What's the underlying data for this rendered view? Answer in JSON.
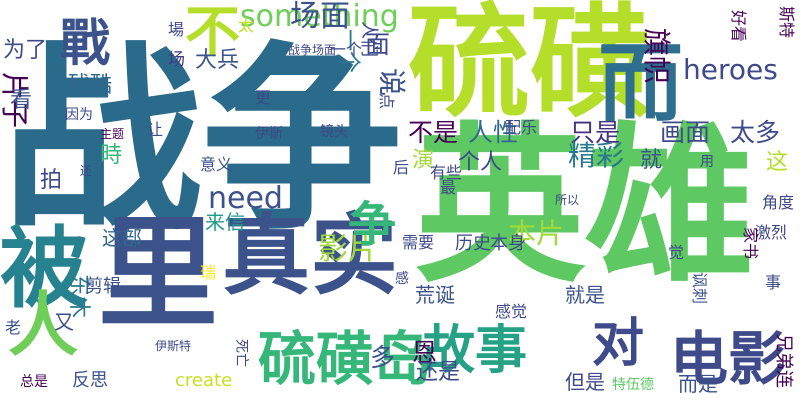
{
  "colors": {
    "background": "#ffffff",
    "palette": [
      "#440154",
      "#3b528b",
      "#31688e",
      "#21918c",
      "#35b779",
      "#5ec962",
      "#a0da39",
      "#c8e020",
      "#fde725"
    ]
  },
  "words": [
    {
      "text": "战争",
      "color": "#2a6a8a"
    },
    {
      "text": "英雄",
      "color": "#5ec962"
    },
    {
      "text": "硫磺",
      "color": "#b5de2b"
    },
    {
      "text": "而",
      "color": "#2e6e8e"
    },
    {
      "text": "被",
      "color": "#26828e"
    },
    {
      "text": "真实",
      "color": "#3b528b"
    },
    {
      "text": "里",
      "color": "#3b528b"
    },
    {
      "text": "人",
      "color": "#6ece58"
    },
    {
      "text": "硫磺岛",
      "color": "#35b779"
    },
    {
      "text": "故事",
      "color": "#25a186"
    },
    {
      "text": "对",
      "color": "#3e4a89"
    },
    {
      "text": "电影",
      "color": "#3e4a89"
    },
    {
      "text": "戰",
      "color": "#3b528b"
    },
    {
      "text": "不",
      "color": "#b5de2b"
    },
    {
      "text": "something",
      "color": "#6ece58"
    },
    {
      "text": "场面",
      "color": "#3b528b"
    },
    {
      "text": "为了",
      "color": "#3e4a89"
    },
    {
      "text": "影片",
      "color": "#a0da39"
    },
    {
      "text": "争",
      "color": "#35b779"
    },
    {
      "text": "need",
      "color": "#3b528b"
    },
    {
      "text": "heroes",
      "color": "#3e4a89"
    },
    {
      "text": "不是",
      "color": "#440154"
    },
    {
      "text": "人性",
      "color": "#31688e"
    },
    {
      "text": "只是",
      "color": "#46327e"
    },
    {
      "text": "画面",
      "color": "#3e4a89"
    },
    {
      "text": "太多",
      "color": "#3e4a89"
    },
    {
      "text": "精彩",
      "color": "#2a788e"
    },
    {
      "text": "旗帜",
      "color": "#440154"
    },
    {
      "text": "一个",
      "color": "#2a788e"
    },
    {
      "text": "面",
      "color": "#3e4a89"
    },
    {
      "text": "说",
      "color": "#3b528b"
    },
    {
      "text": "大兵",
      "color": "#3b528b"
    },
    {
      "text": "残酷",
      "color": "#31688e"
    },
    {
      "text": "片子",
      "color": "#440154"
    },
    {
      "text": "看",
      "color": "#3b528b"
    },
    {
      "text": "场",
      "color": "#443983"
    },
    {
      "text": "来信",
      "color": "#1f9a8a"
    },
    {
      "text": "这部",
      "color": "#31688e"
    },
    {
      "text": "拍",
      "color": "#3e4a89"
    },
    {
      "text": "時",
      "color": "#35b779"
    },
    {
      "text": "演",
      "color": "#a0da39"
    },
    {
      "text": "个人",
      "color": "#3e4a89"
    },
    {
      "text": "就",
      "color": "#3b528b"
    },
    {
      "text": "这",
      "color": "#b5de2b"
    },
    {
      "text": "东木",
      "color": "#2a788e"
    },
    {
      "text": "又",
      "color": "#3b528b"
    },
    {
      "text": "剪辑",
      "color": "#3b528b"
    },
    {
      "text": "瑞",
      "color": "#fde725"
    },
    {
      "text": "荒诞",
      "color": "#3b528b"
    },
    {
      "text": "就是",
      "color": "#3b528b"
    },
    {
      "text": "本片",
      "color": "#a0da39"
    },
    {
      "text": "恩",
      "color": "#440154"
    },
    {
      "text": "多",
      "color": "#3b528b"
    },
    {
      "text": "还是",
      "color": "#3e4a89"
    },
    {
      "text": "create",
      "color": "#c8e020"
    },
    {
      "text": "反思",
      "color": "#3b528b"
    },
    {
      "text": "总是",
      "color": "#440154"
    },
    {
      "text": "老",
      "color": "#3b528b"
    },
    {
      "text": "但是",
      "color": "#3e4a89"
    },
    {
      "text": "而是",
      "color": "#3b528b"
    },
    {
      "text": "特伍德",
      "color": "#5ec962"
    },
    {
      "text": "兄弟连",
      "color": "#440154"
    },
    {
      "text": "角度",
      "color": "#3e4a89"
    },
    {
      "text": "激烈",
      "color": "#3e4a89"
    },
    {
      "text": "事",
      "color": "#3e4a89"
    },
    {
      "text": "讽刺",
      "color": "#3b528b"
    },
    {
      "text": "乱",
      "color": "#5ec962"
    },
    {
      "text": "觉",
      "color": "#3e4a89"
    },
    {
      "text": "本身",
      "color": "#3e4a89"
    },
    {
      "text": "历史",
      "color": "#3e4a89"
    },
    {
      "text": "需要",
      "color": "#3e4a89"
    },
    {
      "text": "有些",
      "color": "#3e4a89"
    },
    {
      "text": "最",
      "color": "#3e4a89"
    },
    {
      "text": "后",
      "color": "#3e4a89"
    },
    {
      "text": "镜头",
      "color": "#3e4a89"
    },
    {
      "text": "伊斯",
      "color": "#3e4a89"
    },
    {
      "text": "意义",
      "color": "#3b528b"
    },
    {
      "text": "还",
      "color": "#3e4a89"
    },
    {
      "text": "主题",
      "color": "#440154"
    },
    {
      "text": "因为",
      "color": "#3e4a89"
    },
    {
      "text": "让",
      "color": "#3e4a89"
    },
    {
      "text": "更",
      "color": "#3e4a89"
    },
    {
      "text": "配乐",
      "color": "#3e4a89"
    },
    {
      "text": "所以",
      "color": "#3e4a89"
    },
    {
      "text": "用",
      "color": "#3e4a89"
    },
    {
      "text": "感觉",
      "color": "#3e4a89"
    },
    {
      "text": "伊斯特",
      "color": "#3e4a89"
    },
    {
      "text": "死亡",
      "color": "#3e4a89"
    },
    {
      "text": "感",
      "color": "#3e4a89"
    },
    {
      "text": "家书",
      "color": "#440154"
    },
    {
      "text": "一个",
      "color": "#3e4a89"
    },
    {
      "text": "好看",
      "color": "#440154"
    },
    {
      "text": "斯特",
      "color": "#440154"
    },
    {
      "text": "战争场面",
      "color": "#3e4a89"
    },
    {
      "text": "一点",
      "color": "#3e4a89"
    },
    {
      "text": "人们",
      "color": "#3e4a89"
    },
    {
      "text": "太",
      "color": "#c8e020"
    },
    {
      "text": "場",
      "color": "#3e4a89"
    }
  ]
}
